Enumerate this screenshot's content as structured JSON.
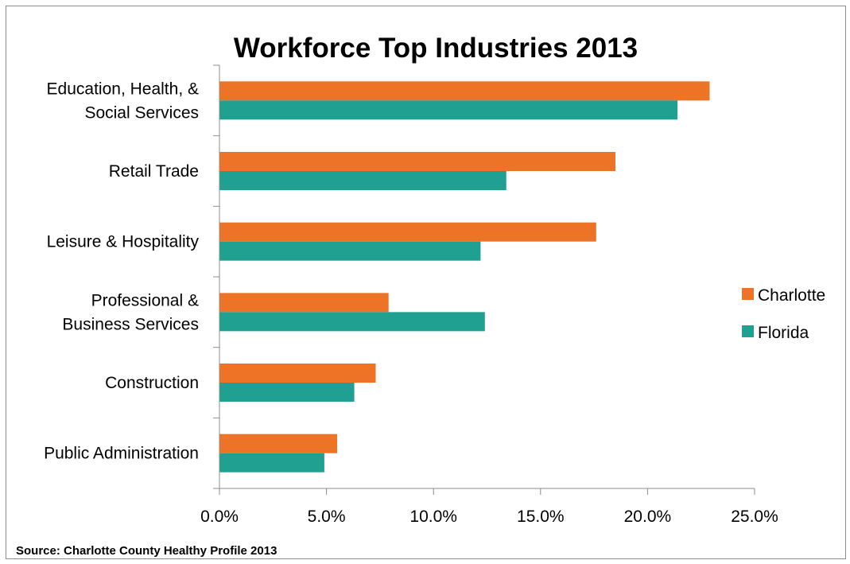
{
  "chart_data": {
    "type": "bar",
    "orientation": "horizontal",
    "title": "Workforce Top Industries 2013",
    "categories": [
      [
        "Education, Health, &",
        "Social Services"
      ],
      [
        "Retail Trade"
      ],
      [
        "Leisure & Hospitality"
      ],
      [
        "Professional &",
        "Business Services"
      ],
      [
        "Construction"
      ],
      [
        "Public Administration"
      ]
    ],
    "series": [
      {
        "name": "Charlotte",
        "color": "#ED7427",
        "values": [
          22.9,
          18.5,
          17.6,
          7.9,
          7.3,
          5.5
        ]
      },
      {
        "name": "Florida",
        "color": "#20A090",
        "values": [
          21.4,
          13.4,
          12.2,
          12.4,
          6.3,
          4.9
        ]
      }
    ],
    "xlim": [
      0,
      25
    ],
    "x_ticks": [
      "0.0%",
      "5.0%",
      "10.0%",
      "15.0%",
      "20.0%",
      "25.0%"
    ],
    "legend_position": "right",
    "grid": false,
    "source": "Source: Charlotte County Healthy Profile 2013"
  }
}
